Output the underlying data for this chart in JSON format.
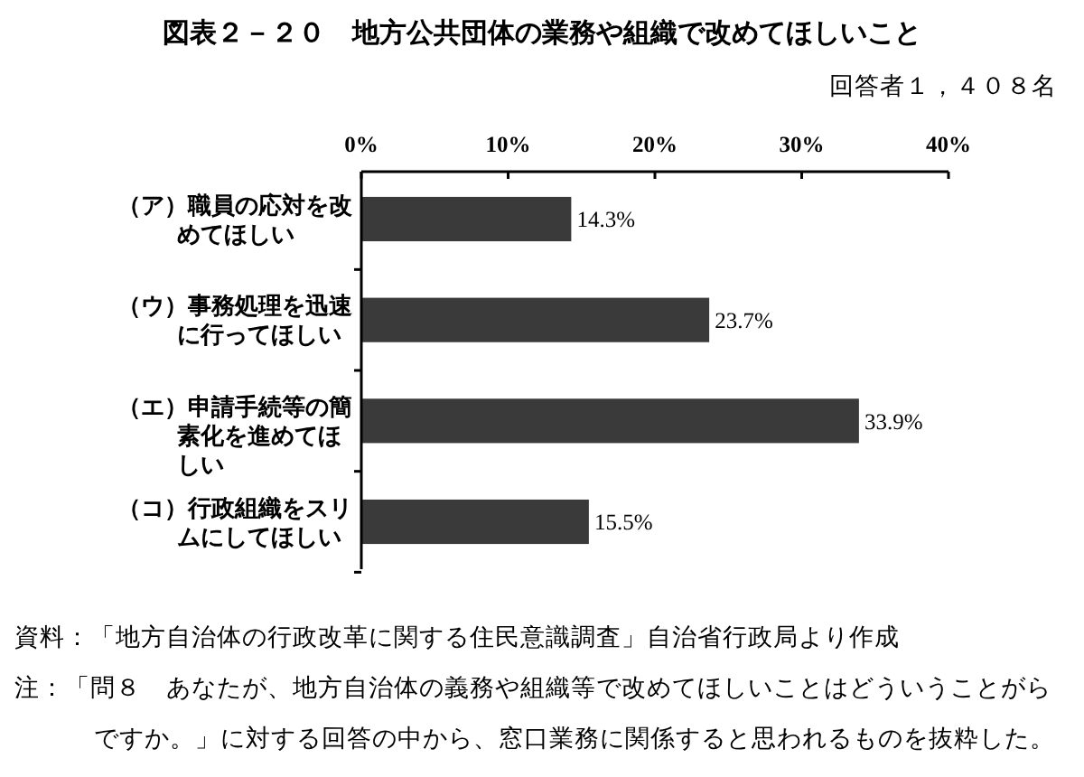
{
  "chart_data": {
    "type": "bar",
    "orientation": "horizontal",
    "title": "図表２－２０　地方公共団体の業務や組織で改めてほしいこと",
    "subtitle": "回答者１，４０８名",
    "categories": [
      "（ア）職員の応対を改めてほしい",
      "（ウ）事務処理を迅速に行ってほしい",
      "（エ）申請手続等の簡素化を進めてほしい",
      "（コ）行政組織をスリムにしてほしい"
    ],
    "values": [
      14.3,
      23.7,
      33.9,
      15.5
    ],
    "color": "#3a3a3a",
    "value_labels": [
      "14.3%",
      "23.7%",
      "33.9%",
      "15.5%"
    ],
    "xlim": [
      0,
      40
    ],
    "xticks": [
      {
        "value": 0,
        "label": "0%"
      },
      {
        "value": 10,
        "label": "10%"
      },
      {
        "value": 20,
        "label": "20%"
      },
      {
        "value": 30,
        "label": "30%"
      },
      {
        "value": 40,
        "label": "40%"
      }
    ],
    "annotations": [
      "資料：「地方自治体の行政改革に関する住民意識調査」自治省行政局より作成",
      "注：「問８　あなたが、地方自治体の義務や組織等で改めてほしいことはどういうことがらですか。」に対する回答の中から、窓口業務に関係すると思われるものを抜粋した。"
    ]
  }
}
